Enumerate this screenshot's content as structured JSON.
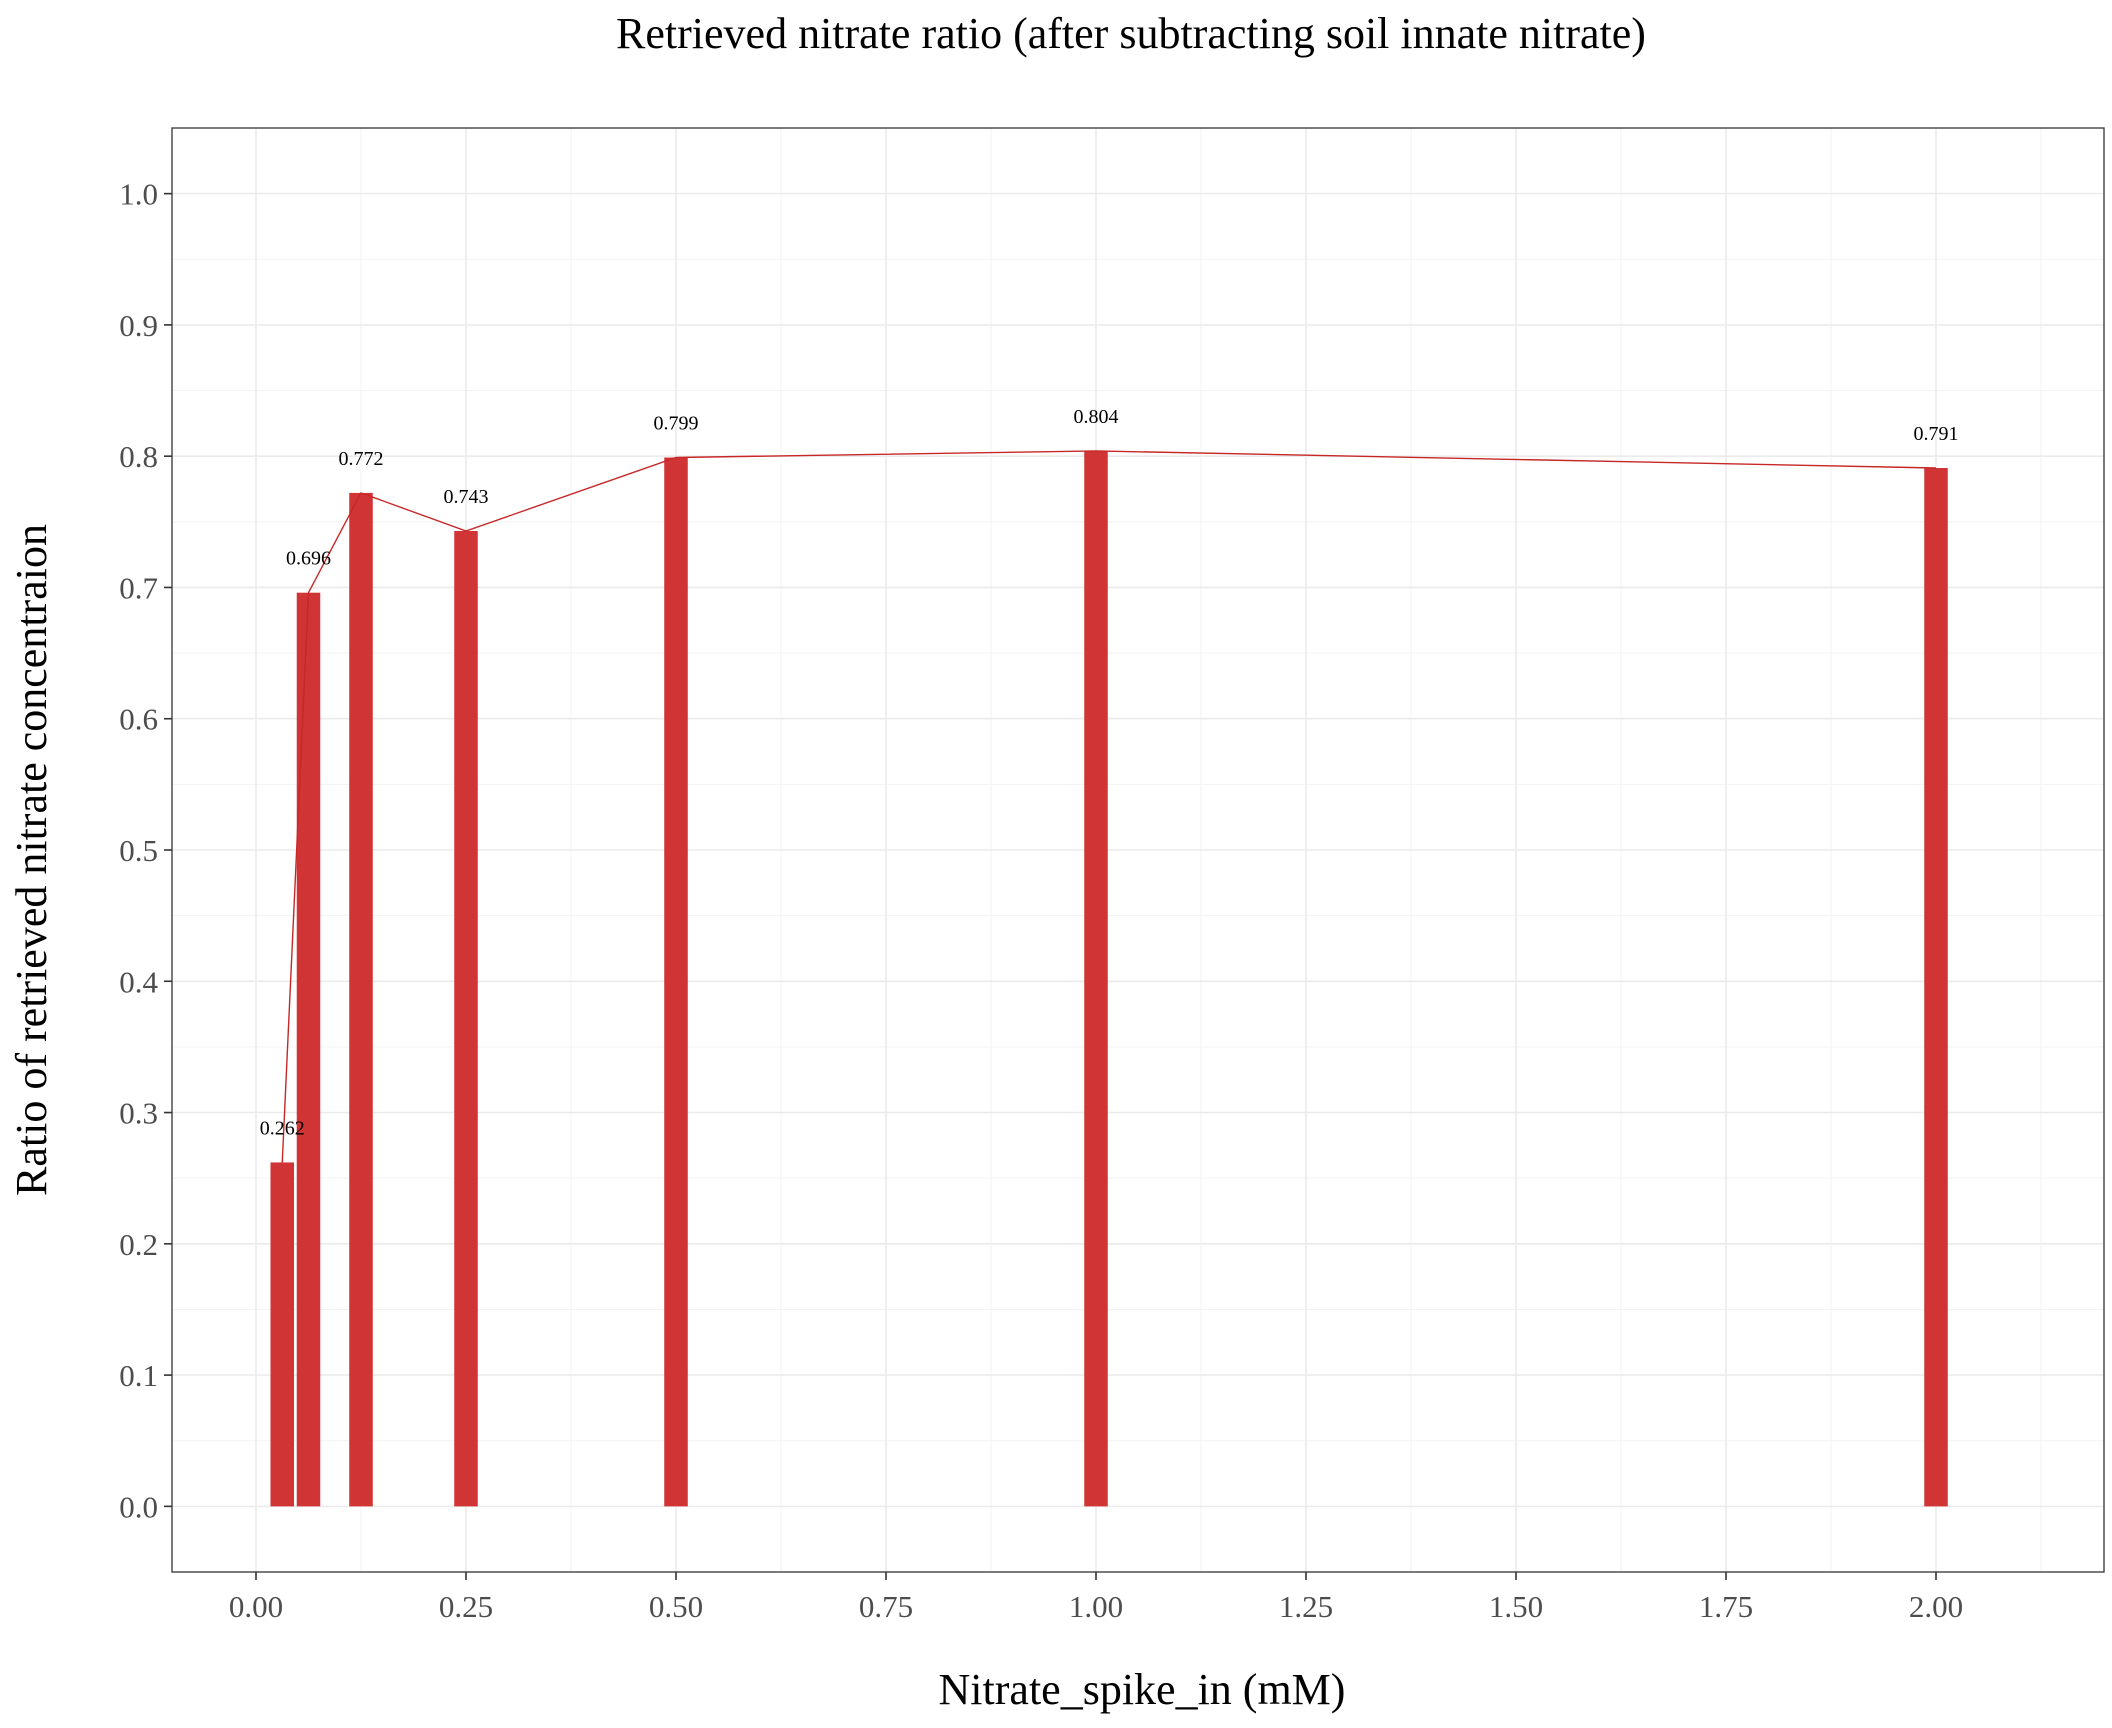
{
  "chart_data": {
    "type": "bar",
    "title": "Retrieved nitrate ratio (after subtracting soil innate nitrate)",
    "xlabel": "Nitrate_spike_in (mM)",
    "ylabel": "Ratio of retrieved nitrate concentraion",
    "x": [
      0.03125,
      0.0625,
      0.125,
      0.25,
      0.5,
      1.0,
      2.0
    ],
    "values": [
      0.262,
      0.696,
      0.772,
      0.743,
      0.799,
      0.804,
      0.791
    ],
    "data_labels": [
      "0.262",
      "0.696",
      "0.772",
      "0.743",
      "0.799",
      "0.804",
      "0.791"
    ],
    "xlim": [
      -0.1,
      2.2
    ],
    "ylim": [
      -0.05,
      1.05
    ],
    "xticks": [
      0.0,
      0.25,
      0.5,
      0.75,
      1.0,
      1.25,
      1.5,
      1.75,
      2.0
    ],
    "xtick_labels": [
      "0.00",
      "0.25",
      "0.50",
      "0.75",
      "1.00",
      "1.25",
      "1.50",
      "1.75",
      "2.00"
    ],
    "yticks": [
      0.0,
      0.1,
      0.2,
      0.3,
      0.4,
      0.5,
      0.6,
      0.7,
      0.8,
      0.9,
      1.0
    ],
    "ytick_labels": [
      "0.0",
      "0.1",
      "0.2",
      "0.3",
      "0.4",
      "0.5",
      "0.6",
      "0.7",
      "0.8",
      "0.9",
      "1.0"
    ],
    "bar_width": 0.028,
    "overlay_line": true,
    "grid": true,
    "legend": "none",
    "bar_color": "#d03434",
    "line_color": "#c62828"
  }
}
